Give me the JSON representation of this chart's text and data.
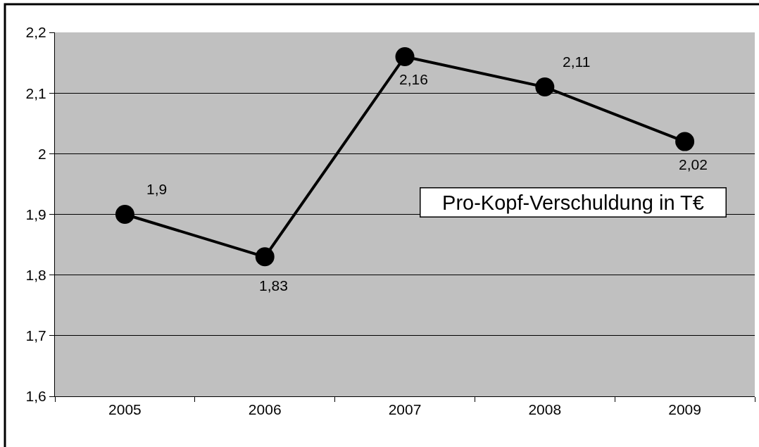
{
  "chart_data": {
    "type": "line",
    "title": "Pro-Kopf-Verschuldung in T€",
    "categories": [
      "2005",
      "2006",
      "2007",
      "2008",
      "2009"
    ],
    "values": [
      1.9,
      1.83,
      2.16,
      2.11,
      2.02
    ],
    "color": "#000000",
    "value_labels": [
      "1,9",
      "1,83",
      "2,16",
      "2,11",
      "2,02"
    ],
    "ylim": [
      1.6,
      2.2
    ],
    "yticks": [
      {
        "value": 1.6,
        "label": "1,6"
      },
      {
        "value": 1.7,
        "label": "1,7"
      },
      {
        "value": 1.8,
        "label": "1,8"
      },
      {
        "value": 1.9,
        "label": "1,9"
      },
      2,
      {
        "value": 2.1,
        "label": "2,1"
      },
      {
        "value": 2.2,
        "label": "2,2"
      }
    ],
    "grid": "y",
    "marker": "circle",
    "line_style": "solid"
  }
}
